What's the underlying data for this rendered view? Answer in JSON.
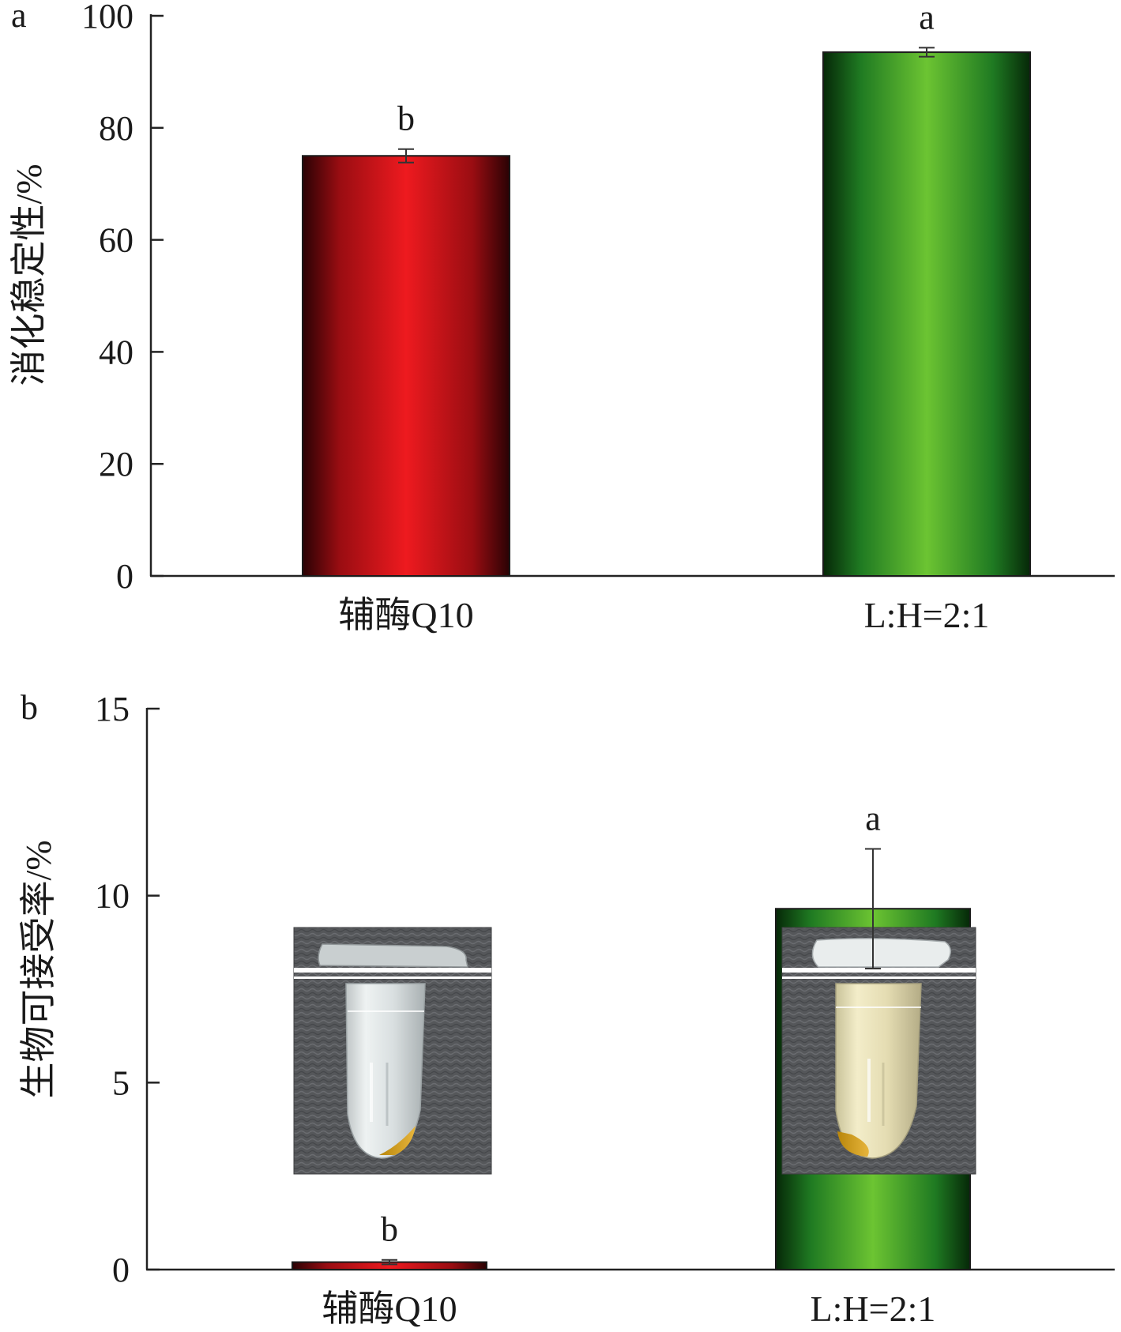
{
  "chart_data": [
    {
      "panel_label": "a",
      "type": "bar",
      "categories": [
        "辅酶Q10",
        "L:H=2:1"
      ],
      "values": [
        75,
        93.5
      ],
      "errors": [
        1.2,
        0.8
      ],
      "significance": [
        "b",
        "a"
      ],
      "bar_colors": [
        "#e0161b",
        "#5fb52f"
      ],
      "ylabel": "消化稳定性/%",
      "ylim": [
        0,
        100
      ],
      "yticks": [
        "0",
        "20",
        "40",
        "60",
        "80",
        "100"
      ],
      "legend": "none",
      "grid": false
    },
    {
      "panel_label": "b",
      "type": "bar",
      "categories": [
        "辅酶Q10",
        "L:H=2:1"
      ],
      "values": [
        0.2,
        9.65
      ],
      "errors": [
        0.06,
        1.6
      ],
      "significance": [
        "b",
        "a"
      ],
      "bar_colors": [
        "#e0161b",
        "#5fb52f"
      ],
      "ylabel": "生物可接受率/%",
      "ylim": [
        0,
        15
      ],
      "yticks": [
        "0",
        "5",
        "10",
        "15"
      ],
      "legend": "none",
      "grid": false,
      "insets": [
        "centrifuge-tube-photo",
        "centrifuge-tube-photo"
      ]
    }
  ]
}
